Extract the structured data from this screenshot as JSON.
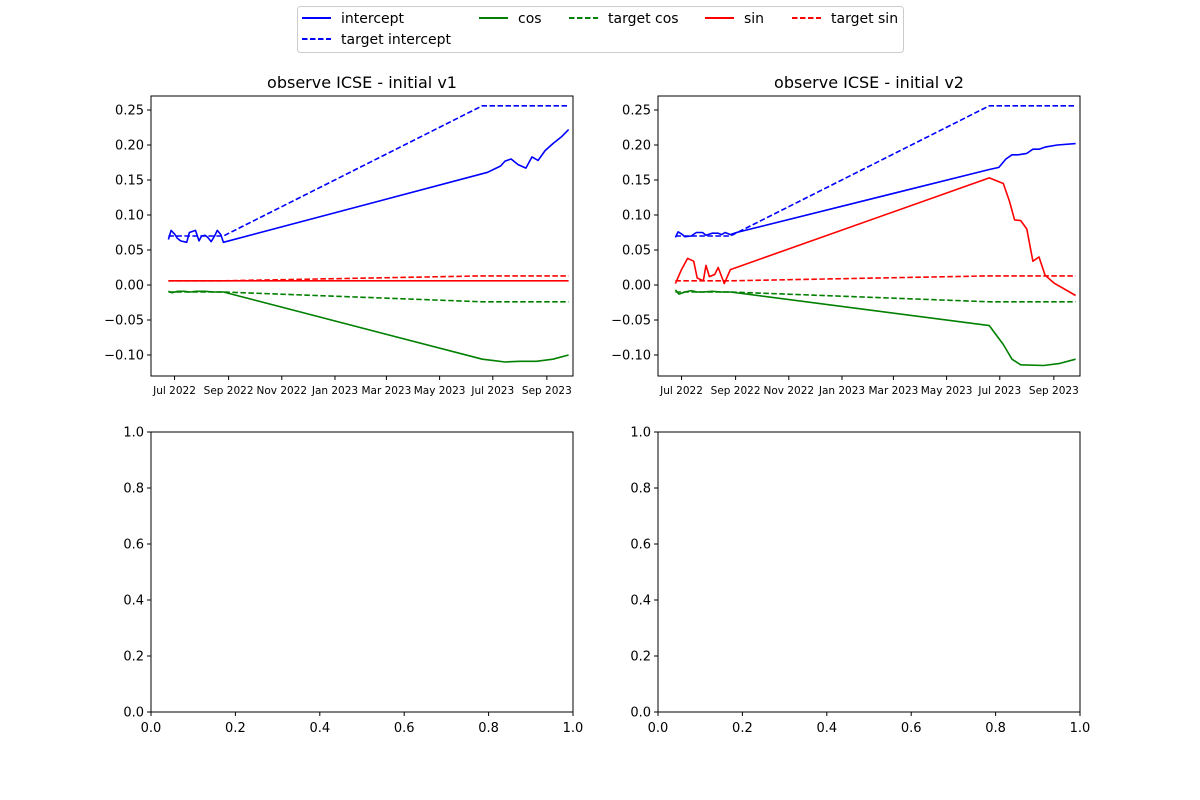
{
  "legend": {
    "entries": [
      {
        "label": "intercept",
        "color": "#0000ff",
        "style": "solid"
      },
      {
        "label": "target intercept",
        "color": "#0000ff",
        "style": "dashed"
      },
      {
        "label": "cos",
        "color": "#008000",
        "style": "solid"
      },
      {
        "label": "target cos",
        "color": "#008000",
        "style": "dashed"
      },
      {
        "label": "sin",
        "color": "#ff0000",
        "style": "solid"
      },
      {
        "label": "target sin",
        "color": "#ff0000",
        "style": "dashed"
      }
    ]
  },
  "chart_data": [
    {
      "type": "line",
      "title": "observe ICSE - initial v1",
      "ylim": [
        -0.13,
        0.27
      ],
      "xlim": [
        "2022-06-04",
        "2023-10-01"
      ],
      "yticks": [
        "0.25",
        "0.20",
        "0.15",
        "0.10",
        "0.05",
        "0.00",
        "−0.05",
        "−0.10"
      ],
      "ytick_values": [
        0.25,
        0.2,
        0.15,
        0.1,
        0.05,
        0.0,
        -0.05,
        -0.1
      ],
      "xticks": [
        "Jul 2022",
        "Sep 2022",
        "Nov 2022",
        "Jan 2023",
        "Mar 2023",
        "May 2023",
        "Jul 2023",
        "Sep 2023"
      ],
      "xtick_dates": [
        "2022-07-01",
        "2022-09-01",
        "2022-11-01",
        "2023-01-01",
        "2023-03-01",
        "2023-05-01",
        "2023-07-01",
        "2023-09-01"
      ],
      "series": [
        {
          "name": "intercept",
          "color": "#0000ff",
          "style": "solid",
          "points": [
            [
              "2022-06-24",
              0.065
            ],
            [
              "2022-06-27",
              0.078
            ],
            [
              "2022-07-01",
              0.073
            ],
            [
              "2022-07-04",
              0.067
            ],
            [
              "2022-07-08",
              0.063
            ],
            [
              "2022-07-15",
              0.061
            ],
            [
              "2022-07-18",
              0.075
            ],
            [
              "2022-07-25",
              0.078
            ],
            [
              "2022-07-29",
              0.063
            ],
            [
              "2022-08-01",
              0.07
            ],
            [
              "2022-08-05",
              0.071
            ],
            [
              "2022-08-08",
              0.068
            ],
            [
              "2022-08-12",
              0.062
            ],
            [
              "2022-08-16",
              0.07
            ],
            [
              "2022-08-19",
              0.078
            ],
            [
              "2022-08-23",
              0.072
            ],
            [
              "2022-08-26",
              0.061
            ],
            [
              "2023-06-25",
              0.161
            ],
            [
              "2023-07-10",
              0.17
            ],
            [
              "2023-07-15",
              0.177
            ],
            [
              "2023-07-22",
              0.18
            ],
            [
              "2023-07-30",
              0.172
            ],
            [
              "2023-08-08",
              0.167
            ],
            [
              "2023-08-15",
              0.183
            ],
            [
              "2023-08-22",
              0.178
            ],
            [
              "2023-08-30",
              0.192
            ],
            [
              "2023-09-08",
              0.202
            ],
            [
              "2023-09-18",
              0.212
            ],
            [
              "2023-09-26",
              0.222
            ]
          ]
        },
        {
          "name": "target intercept",
          "color": "#0000ff",
          "style": "dashed",
          "points": [
            [
              "2022-06-24",
              0.07
            ],
            [
              "2022-08-26",
              0.07
            ],
            [
              "2023-06-19",
              0.256
            ],
            [
              "2023-09-26",
              0.256
            ]
          ]
        },
        {
          "name": "cos",
          "color": "#008000",
          "style": "solid",
          "points": [
            [
              "2022-06-24",
              -0.009
            ],
            [
              "2022-06-28",
              -0.011
            ],
            [
              "2022-07-05",
              -0.009
            ],
            [
              "2022-07-12",
              -0.009
            ],
            [
              "2022-07-19",
              -0.01
            ],
            [
              "2022-07-26",
              -0.009
            ],
            [
              "2022-08-05",
              -0.009
            ],
            [
              "2022-08-15",
              -0.01
            ],
            [
              "2022-08-26",
              -0.01
            ],
            [
              "2023-06-19",
              -0.106
            ],
            [
              "2023-07-02",
              -0.108
            ],
            [
              "2023-07-15",
              -0.11
            ],
            [
              "2023-08-01",
              -0.109
            ],
            [
              "2023-08-20",
              -0.109
            ],
            [
              "2023-09-08",
              -0.106
            ],
            [
              "2023-09-26",
              -0.1
            ]
          ]
        },
        {
          "name": "target cos",
          "color": "#008000",
          "style": "dashed",
          "points": [
            [
              "2022-06-24",
              -0.01
            ],
            [
              "2022-08-26",
              -0.01
            ],
            [
              "2023-06-19",
              -0.024
            ],
            [
              "2023-09-26",
              -0.024
            ]
          ]
        },
        {
          "name": "sin",
          "color": "#ff0000",
          "style": "solid",
          "points": [
            [
              "2022-06-24",
              0.006
            ],
            [
              "2023-09-26",
              0.006
            ]
          ]
        },
        {
          "name": "target sin",
          "color": "#ff0000",
          "style": "dashed",
          "points": [
            [
              "2022-06-24",
              0.006
            ],
            [
              "2022-08-26",
              0.006
            ],
            [
              "2023-06-19",
              0.013
            ],
            [
              "2023-09-26",
              0.013
            ]
          ]
        }
      ]
    },
    {
      "type": "line",
      "title": "observe ICSE - initial v2",
      "ylim": [
        -0.13,
        0.27
      ],
      "xlim": [
        "2022-06-04",
        "2023-10-01"
      ],
      "yticks": [
        "0.25",
        "0.20",
        "0.15",
        "0.10",
        "0.05",
        "0.00",
        "−0.05",
        "−0.10"
      ],
      "ytick_values": [
        0.25,
        0.2,
        0.15,
        0.1,
        0.05,
        0.0,
        -0.05,
        -0.1
      ],
      "xticks": [
        "Jul 2022",
        "Sep 2022",
        "Nov 2022",
        "Jan 2023",
        "Mar 2023",
        "May 2023",
        "Jul 2023",
        "Sep 2023"
      ],
      "xtick_dates": [
        "2022-07-01",
        "2022-09-01",
        "2022-11-01",
        "2023-01-01",
        "2023-03-01",
        "2023-05-01",
        "2023-07-01",
        "2023-09-01"
      ],
      "series": [
        {
          "name": "intercept",
          "color": "#0000ff",
          "style": "solid",
          "points": [
            [
              "2022-06-24",
              0.068
            ],
            [
              "2022-06-27",
              0.076
            ],
            [
              "2022-07-01",
              0.073
            ],
            [
              "2022-07-05",
              0.069
            ],
            [
              "2022-07-12",
              0.07
            ],
            [
              "2022-07-18",
              0.075
            ],
            [
              "2022-07-25",
              0.075
            ],
            [
              "2022-07-29",
              0.071
            ],
            [
              "2022-08-05",
              0.074
            ],
            [
              "2022-08-12",
              0.074
            ],
            [
              "2022-08-16",
              0.072
            ],
            [
              "2022-08-20",
              0.075
            ],
            [
              "2022-08-26",
              0.072
            ],
            [
              "2022-09-02",
              0.075
            ],
            [
              "2023-06-19",
              0.165
            ],
            [
              "2023-06-30",
              0.168
            ],
            [
              "2023-07-08",
              0.18
            ],
            [
              "2023-07-15",
              0.186
            ],
            [
              "2023-07-22",
              0.186
            ],
            [
              "2023-08-01",
              0.188
            ],
            [
              "2023-08-08",
              0.194
            ],
            [
              "2023-08-15",
              0.194
            ],
            [
              "2023-08-22",
              0.197
            ],
            [
              "2023-09-05",
              0.2
            ],
            [
              "2023-09-26",
              0.202
            ]
          ]
        },
        {
          "name": "target intercept",
          "color": "#0000ff",
          "style": "dashed",
          "points": [
            [
              "2022-06-24",
              0.07
            ],
            [
              "2022-08-26",
              0.07
            ],
            [
              "2023-06-19",
              0.256
            ],
            [
              "2023-09-26",
              0.256
            ]
          ]
        },
        {
          "name": "cos",
          "color": "#008000",
          "style": "solid",
          "points": [
            [
              "2022-06-24",
              -0.007
            ],
            [
              "2022-06-28",
              -0.013
            ],
            [
              "2022-07-05",
              -0.01
            ],
            [
              "2022-07-12",
              -0.008
            ],
            [
              "2022-07-19",
              -0.01
            ],
            [
              "2022-07-26",
              -0.01
            ],
            [
              "2022-08-05",
              -0.009
            ],
            [
              "2022-08-15",
              -0.01
            ],
            [
              "2022-08-26",
              -0.01
            ],
            [
              "2023-06-19",
              -0.058
            ],
            [
              "2023-07-05",
              -0.085
            ],
            [
              "2023-07-15",
              -0.106
            ],
            [
              "2023-07-25",
              -0.114
            ],
            [
              "2023-08-20",
              -0.115
            ],
            [
              "2023-09-08",
              -0.112
            ],
            [
              "2023-09-26",
              -0.106
            ]
          ]
        },
        {
          "name": "target cos",
          "color": "#008000",
          "style": "dashed",
          "points": [
            [
              "2022-06-24",
              -0.01
            ],
            [
              "2022-08-26",
              -0.01
            ],
            [
              "2023-06-19",
              -0.024
            ],
            [
              "2023-09-26",
              -0.024
            ]
          ]
        },
        {
          "name": "sin",
          "color": "#ff0000",
          "style": "solid",
          "points": [
            [
              "2022-06-24",
              0.002
            ],
            [
              "2022-07-01",
              0.022
            ],
            [
              "2022-07-08",
              0.038
            ],
            [
              "2022-07-15",
              0.034
            ],
            [
              "2022-07-19",
              0.01
            ],
            [
              "2022-07-26",
              0.006
            ],
            [
              "2022-07-29",
              0.028
            ],
            [
              "2022-08-02",
              0.012
            ],
            [
              "2022-08-08",
              0.015
            ],
            [
              "2022-08-12",
              0.025
            ],
            [
              "2022-08-19",
              0.002
            ],
            [
              "2022-08-26",
              0.022
            ],
            [
              "2023-06-19",
              0.153
            ],
            [
              "2023-07-05",
              0.145
            ],
            [
              "2023-07-12",
              0.12
            ],
            [
              "2023-07-18",
              0.093
            ],
            [
              "2023-07-25",
              0.092
            ],
            [
              "2023-08-01",
              0.08
            ],
            [
              "2023-08-08",
              0.034
            ],
            [
              "2023-08-15",
              0.04
            ],
            [
              "2023-08-22",
              0.014
            ],
            [
              "2023-09-01",
              0.003
            ],
            [
              "2023-09-26",
              -0.015
            ]
          ]
        },
        {
          "name": "target sin",
          "color": "#ff0000",
          "style": "dashed",
          "points": [
            [
              "2022-06-24",
              0.006
            ],
            [
              "2022-08-26",
              0.006
            ],
            [
              "2023-06-19",
              0.013
            ],
            [
              "2023-09-26",
              0.013
            ]
          ]
        }
      ]
    },
    {
      "type": "line",
      "title": "",
      "xlim": [
        0.0,
        1.0
      ],
      "ylim": [
        0.0,
        1.0
      ],
      "xticks": [
        "0.0",
        "0.2",
        "0.4",
        "0.6",
        "0.8",
        "1.0"
      ],
      "yticks": [
        "0.0",
        "0.2",
        "0.4",
        "0.6",
        "0.8",
        "1.0"
      ],
      "series": []
    },
    {
      "type": "line",
      "title": "",
      "xlim": [
        0.0,
        1.0
      ],
      "ylim": [
        0.0,
        1.0
      ],
      "xticks": [
        "0.0",
        "0.2",
        "0.4",
        "0.6",
        "0.8",
        "1.0"
      ],
      "yticks": [
        "0.0",
        "0.2",
        "0.4",
        "0.6",
        "0.8",
        "1.0"
      ],
      "series": []
    }
  ]
}
